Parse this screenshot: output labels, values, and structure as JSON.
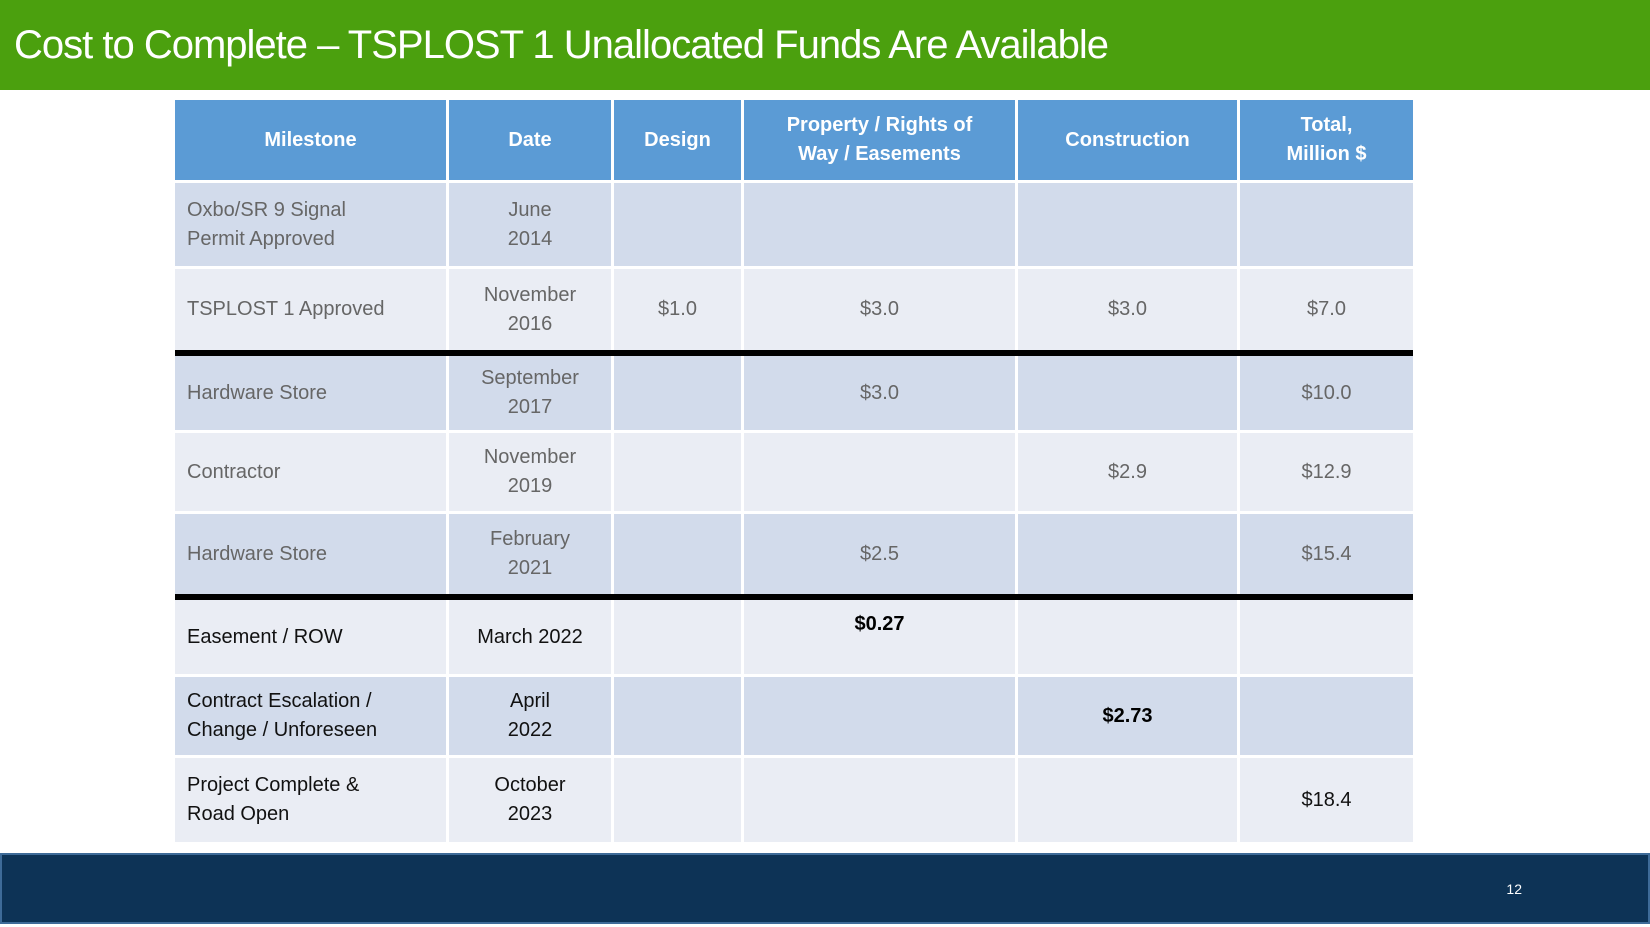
{
  "slide": {
    "title": "Cost to Complete – TSPLOST 1 Unallocated Funds Are Available",
    "page_number": "12"
  },
  "colors": {
    "title_bar_green": "#4BA00E",
    "table_header_blue": "#5B9BD5",
    "row_band_dark": "#D2DBEB",
    "row_band_light": "#EAEDF4",
    "divider_black": "#000000",
    "footer_navy": "#0D3356",
    "footer_border_blue": "#3E6B98",
    "muted_text_gray": "#666666"
  },
  "table": {
    "columns": [
      "Milestone",
      "Date",
      "Design",
      "Property / Rights of\nWay / Easements",
      "Construction",
      "Total,\nMillion $"
    ],
    "rows": [
      {
        "milestone": "Oxbo/SR 9 Signal\nPermit Approved",
        "date": "June\n2014",
        "design": "",
        "property": "",
        "construction": "",
        "total": ""
      },
      {
        "milestone": "TSPLOST 1 Approved",
        "date": "November\n2016",
        "design": "$1.0",
        "property": "$3.0",
        "construction": "$3.0",
        "total": "$7.0"
      },
      {
        "milestone": "Hardware Store",
        "date": "September\n2017",
        "design": "",
        "property": "$3.0",
        "construction": "",
        "total": "$10.0"
      },
      {
        "milestone": "Contractor",
        "date": "November\n2019",
        "design": "",
        "property": "",
        "construction": "$2.9",
        "total": "$12.9"
      },
      {
        "milestone": "Hardware Store",
        "date": "February\n2021",
        "design": "",
        "property": "$2.5",
        "construction": "",
        "total": "$15.4"
      },
      {
        "milestone": "Easement / ROW",
        "date": "March 2022",
        "design": "",
        "property": "$0.27",
        "construction": "",
        "total": ""
      },
      {
        "milestone": "Contract Escalation /\nChange / Unforeseen",
        "date": "April\n2022",
        "design": "",
        "property": "",
        "construction": "$2.73",
        "total": ""
      },
      {
        "milestone": "Project Complete &\nRoad Open",
        "date": "October\n2023",
        "design": "",
        "property": "",
        "construction": "",
        "total": "$18.4"
      }
    ]
  }
}
